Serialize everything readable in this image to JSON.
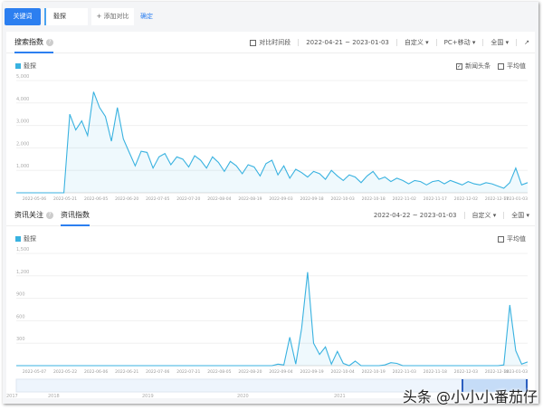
{
  "toolbar": {
    "keyword_tab": "关键词",
    "keyword": "毅探",
    "add_compare": "+ 添加对比",
    "confirm": "确定"
  },
  "search_index": {
    "title": "搜索指数",
    "compare_period": "对比时间段",
    "date_range": "2022-04-21 ~ 2023-01-03",
    "custom": "自定义",
    "device": "PC+移动",
    "region": "全国",
    "legend": "毅探",
    "news_headline": "新闻头条",
    "average": "平均值",
    "news_headline_checked": true
  },
  "info": {
    "tab_focus": "资讯关注",
    "tab_index": "资讯指数",
    "date_range": "2022-04-22 ~ 2023-01-03",
    "custom": "自定义",
    "region": "全国",
    "legend": "毅探",
    "average": "平均值"
  },
  "slider": {
    "years": [
      "2017",
      "2018",
      "2019",
      "2020",
      "2021"
    ]
  },
  "watermark": "头条 @小小小番茄仔",
  "colors": {
    "accent": "#2c7ff0",
    "series": "#39b2e0"
  },
  "chart_data": [
    {
      "type": "area",
      "ylim": [
        0,
        5000
      ],
      "yticks": [
        "1,000",
        "2,000",
        "3,000",
        "4,000",
        "5,000"
      ],
      "ytick_values": [
        1000,
        2000,
        3000,
        4000,
        5000
      ],
      "xticks": [
        "2022-05-06",
        "2022-05-21",
        "2022-06-05",
        "2022-06-20",
        "2022-07-05",
        "2022-07-20",
        "2022-08-04",
        "2022-08-19",
        "2022-09-03",
        "2022-09-18",
        "2022-10-03",
        "2022-10-18",
        "2022-11-02",
        "2022-11-17",
        "2022-12-02",
        "2022-12-17",
        "2023-01-03"
      ],
      "series": [
        {
          "values": [
            0,
            0,
            0,
            0,
            0,
            0,
            0,
            0,
            0,
            3500,
            2800,
            3200,
            2550,
            4500,
            3800,
            3400,
            2300,
            3800,
            2400,
            1800,
            1200,
            1850,
            1800,
            1100,
            1600,
            1750,
            1250,
            1600,
            1500,
            1150,
            1650,
            1450,
            1100,
            1600,
            1350,
            950,
            1400,
            1200,
            850,
            1250,
            1150,
            750,
            1300,
            1450,
            800,
            1200,
            650,
            1050,
            900,
            700,
            950,
            850,
            600,
            1000,
            750,
            550,
            800,
            700,
            450,
            750,
            950,
            600,
            700,
            500,
            650,
            550,
            400,
            550,
            500,
            350,
            500,
            550,
            400,
            550,
            450,
            350,
            500,
            400,
            350,
            450,
            400,
            300,
            200,
            450,
            1100,
            350,
            450
          ]
        }
      ]
    },
    {
      "type": "area",
      "ylim": [
        0,
        1500
      ],
      "yticks": [
        "300",
        "600",
        "900",
        "1,200",
        "1,500"
      ],
      "ytick_values": [
        300,
        600,
        900,
        1200,
        1500
      ],
      "xticks": [
        "2022-05-07",
        "2022-05-22",
        "2022-06-06",
        "2022-06-21",
        "2022-07-06",
        "2022-07-21",
        "2022-08-05",
        "2022-08-20",
        "2022-09-04",
        "2022-09-19",
        "2022-10-04",
        "2022-10-19",
        "2022-11-03",
        "2022-11-18",
        "2022-12-03",
        "2022-12-18",
        "2023-01-03"
      ],
      "series": [
        {
          "values": [
            0,
            0,
            0,
            0,
            0,
            0,
            0,
            0,
            0,
            0,
            0,
            0,
            0,
            0,
            0,
            0,
            0,
            0,
            0,
            0,
            0,
            0,
            0,
            0,
            0,
            0,
            0,
            0,
            0,
            0,
            0,
            0,
            0,
            0,
            0,
            0,
            0,
            0,
            0,
            0,
            0,
            0,
            0,
            0,
            20,
            10,
            380,
            20,
            500,
            1250,
            300,
            150,
            250,
            20,
            190,
            30,
            0,
            60,
            0,
            0,
            0,
            0,
            10,
            40,
            30,
            0,
            0,
            0,
            0,
            0,
            0,
            0,
            0,
            0,
            0,
            0,
            0,
            0,
            0,
            0,
            0,
            0,
            10,
            810,
            200,
            20,
            50
          ]
        }
      ]
    }
  ]
}
